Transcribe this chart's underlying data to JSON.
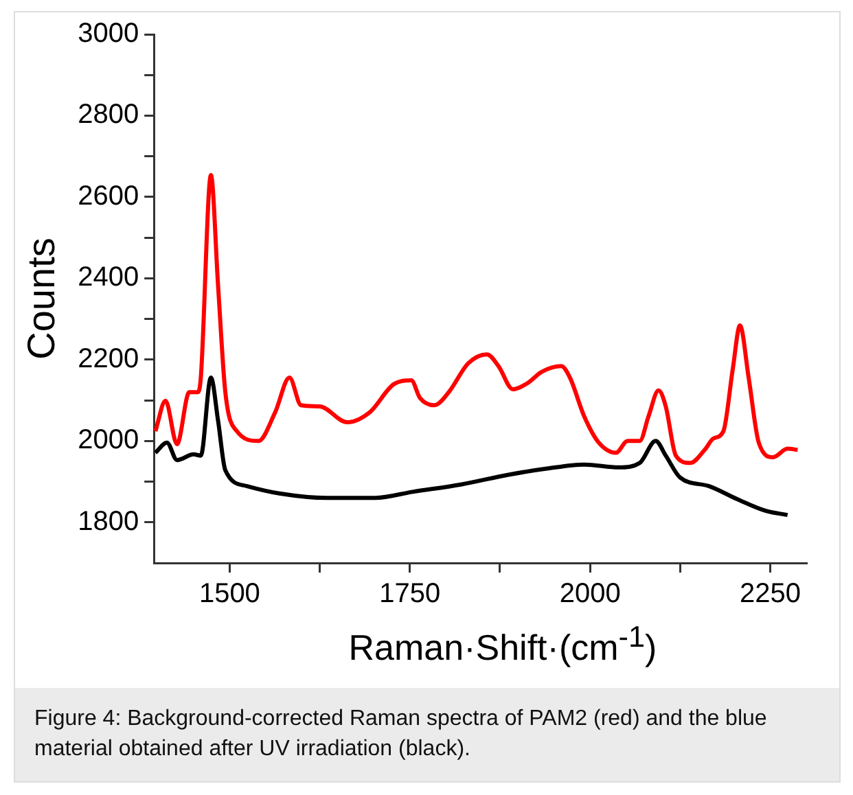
{
  "chart_data": {
    "type": "line",
    "xlabel": "Raman·Shift·(cm$^{-1}$)",
    "ylabel": "Counts",
    "xlim": [
      1395,
      2300
    ],
    "ylim": [
      1700,
      3000
    ],
    "xticks": [
      1500,
      {
        "value": 1625,
        "label": null
      },
      1750,
      {
        "value": 1875,
        "label": null
      },
      2000,
      {
        "value": 2125,
        "label": null
      },
      2250
    ],
    "yticks": [
      1800,
      {
        "value": 1900,
        "label": null
      },
      2000,
      {
        "value": 2100,
        "label": null
      },
      2200,
      {
        "value": 2300,
        "label": null
      },
      2400,
      {
        "value": 2500,
        "label": null
      },
      2600,
      {
        "value": 2700,
        "label": null
      },
      2800,
      {
        "value": 2900,
        "label": null
      },
      3000
    ],
    "grid": false,
    "legend": false,
    "marker": "none",
    "line_style": "solid",
    "annotations": [
      "Figure 4: Background-corrected Raman spectra of PAM2 (red) and the blue material obtained after UV irradiation (black)."
    ],
    "series": [
      {
        "color": "#ff0000",
        "x": [
          1397,
          1411,
          1427,
          1444,
          1456,
          1460,
          1474,
          1484,
          1494,
          1510,
          1540,
          1563,
          1583,
          1599,
          1625,
          1663,
          1694,
          1728,
          1752,
          1764,
          1784,
          1804,
          1831,
          1857,
          1873,
          1893,
          1913,
          1933,
          1960,
          1972,
          1992,
          2012,
          2036,
          2052,
          2069,
          2081,
          2095,
          2105,
          2119,
          2139,
          2159,
          2171,
          2185,
          2198,
          2208,
          2220,
          2234,
          2254,
          2274,
          2288
        ],
        "values": [
          2024,
          2099,
          1992,
          2120,
          2120,
          2156,
          2654,
          2380,
          2120,
          2024,
          2000,
          2070,
          2156,
          2088,
          2085,
          2046,
          2070,
          2140,
          2149,
          2106,
          2088,
          2120,
          2191,
          2213,
          2184,
          2127,
          2142,
          2170,
          2184,
          2156,
          2060,
          1996,
          1971,
          2000,
          2000,
          2060,
          2124,
          2085,
          1964,
          1946,
          1978,
          2006,
          2024,
          2177,
          2284,
          2156,
          1996,
          1960,
          1981,
          1978
        ]
      },
      {
        "color": "#000000",
        "x": [
          1397,
          1413,
          1427,
          1450,
          1460,
          1474,
          1484,
          1494,
          1524,
          1569,
          1635,
          1702,
          1754,
          1821,
          1887,
          1940,
          1992,
          2040,
          2069,
          2091,
          2105,
          2125,
          2165,
          2204,
          2244,
          2274
        ],
        "values": [
          1971,
          1996,
          1953,
          1967,
          1964,
          2156,
          2049,
          1928,
          1889,
          1871,
          1860,
          1860,
          1875,
          1893,
          1917,
          1932,
          1942,
          1935,
          1946,
          2000,
          1964,
          1910,
          1889,
          1857,
          1828,
          1818
        ]
      }
    ]
  }
}
